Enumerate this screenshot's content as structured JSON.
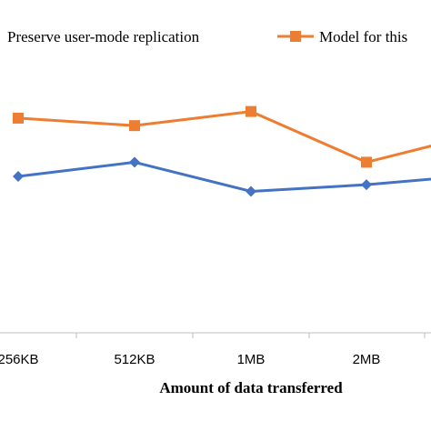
{
  "chart_data": {
    "type": "line",
    "categories": [
      "256KB",
      "512KB",
      "1MB",
      "2MB",
      ""
    ],
    "xlabel": "Amount of data transferred",
    "ylabel": "",
    "legend_position": "top",
    "grid": false,
    "series": [
      {
        "name": "Preserve user-mode replication",
        "color": "#4472c4",
        "marker": "diamond",
        "values": [
          1.88,
          2.05,
          1.7,
          1.78,
          1.9
        ]
      },
      {
        "name": "Model for this",
        "color": "#ed7d31",
        "marker": "square",
        "values": [
          2.58,
          2.49,
          2.66,
          2.05,
          2.4
        ]
      }
    ],
    "ylim": [
      0,
      4
    ]
  }
}
